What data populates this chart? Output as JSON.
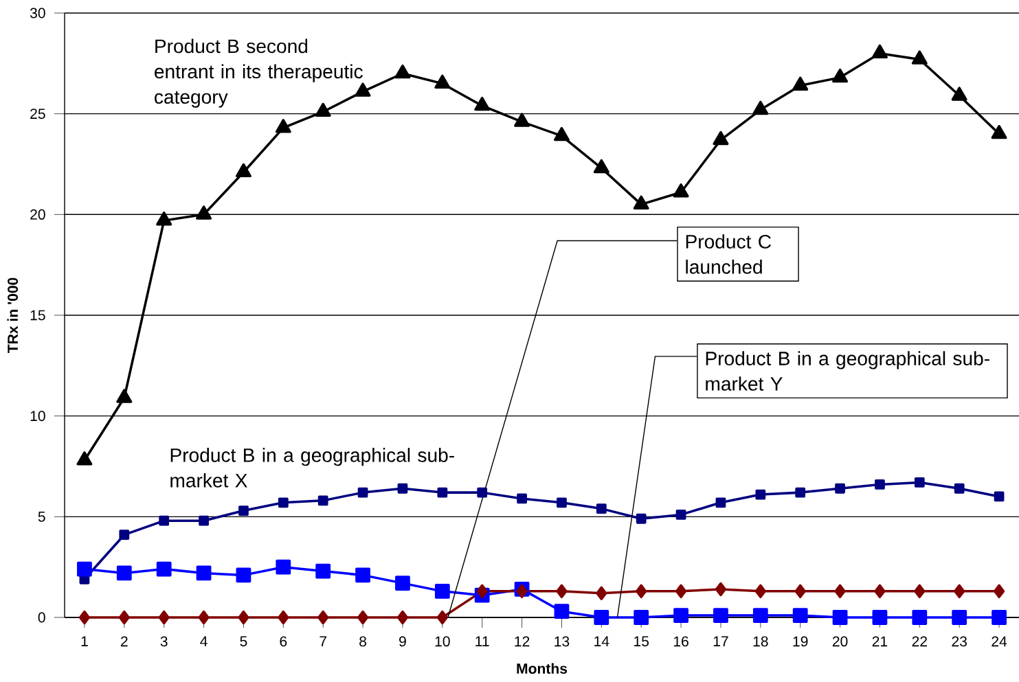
{
  "chart_data": {
    "type": "line",
    "xlabel": "Months",
    "ylabel": "TRx in '000",
    "x": [
      1,
      2,
      3,
      4,
      5,
      6,
      7,
      8,
      9,
      10,
      11,
      12,
      13,
      14,
      15,
      16,
      17,
      18,
      19,
      20,
      21,
      22,
      23,
      24
    ],
    "xlim": [
      0.5,
      24.5
    ],
    "xticks": [
      1,
      2,
      3,
      4,
      5,
      6,
      7,
      8,
      9,
      10,
      11,
      12,
      13,
      14,
      15,
      16,
      17,
      18,
      19,
      20,
      21,
      22,
      23,
      24
    ],
    "ylim": [
      0,
      30
    ],
    "yticks": [
      0,
      5,
      10,
      15,
      20,
      25,
      30
    ],
    "grid": "y",
    "legend": false,
    "line_style": "solid",
    "series": [
      {
        "name": "Product B second entrant in its therapeutic category",
        "color": "#000000",
        "marker": "triangle",
        "values": [
          7.8,
          10.9,
          19.7,
          20.0,
          22.1,
          24.3,
          25.1,
          26.1,
          27.0,
          26.5,
          25.4,
          24.6,
          23.9,
          22.3,
          20.5,
          21.1,
          23.7,
          25.2,
          26.4,
          26.8,
          28.0,
          27.7,
          25.9,
          24.0
        ]
      },
      {
        "name": "Product B in a geographical sub-market X",
        "color": "#000080",
        "marker": "square",
        "values": [
          1.9,
          4.1,
          4.8,
          4.8,
          5.3,
          5.7,
          5.8,
          6.2,
          6.4,
          6.2,
          6.2,
          5.9,
          5.7,
          5.4,
          4.9,
          5.1,
          5.7,
          6.1,
          6.2,
          6.4,
          6.6,
          6.7,
          6.4,
          6.0
        ]
      },
      {
        "name": "Product B in a geographical sub-market Y",
        "color": "#0000ff",
        "marker": "square",
        "values": [
          2.4,
          2.2,
          2.4,
          2.2,
          2.1,
          2.5,
          2.3,
          2.1,
          1.7,
          1.3,
          1.1,
          1.4,
          0.3,
          0.0,
          0.0,
          0.1,
          0.1,
          0.1,
          0.1,
          0.0,
          0.0,
          0.0,
          0.0,
          0.0
        ]
      },
      {
        "name": "Product C launched",
        "color": "#800000",
        "marker": "diamond",
        "values": [
          0,
          0,
          0,
          0,
          0,
          0,
          0,
          0,
          0,
          0,
          1.3,
          1.3,
          1.3,
          1.2,
          1.3,
          1.3,
          1.4,
          1.3,
          1.3,
          1.3,
          1.3,
          1.3,
          1.3,
          1.3
        ]
      }
    ]
  }
}
